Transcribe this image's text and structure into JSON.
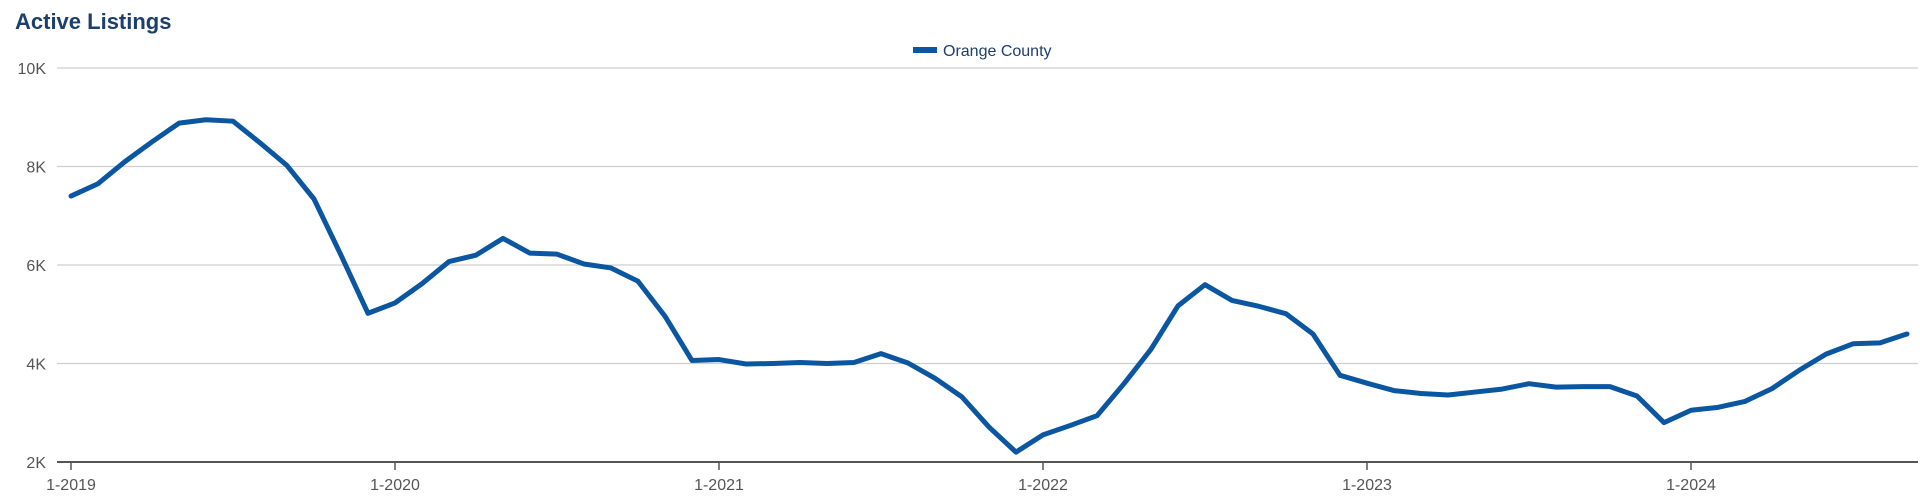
{
  "title": "Active Listings",
  "colors": {
    "series": "#0b56a1",
    "grid": "#cfcfcf",
    "axis": "#555555",
    "title": "#1c3f6e"
  },
  "chart_data": {
    "type": "line",
    "title": "Active Listings",
    "legend": {
      "placement": "top-center"
    },
    "grid": true,
    "ylim": [
      2000,
      10000
    ],
    "y_ticks": [
      {
        "value": 2000,
        "label": "2K"
      },
      {
        "value": 4000,
        "label": "4K"
      },
      {
        "value": 6000,
        "label": "6K"
      },
      {
        "value": 8000,
        "label": "8K"
      },
      {
        "value": 10000,
        "label": "10K"
      }
    ],
    "x_ticks": [
      "1-2019",
      "1-2020",
      "1-2021",
      "1-2022",
      "1-2023",
      "1-2024"
    ],
    "x": [
      "1-2019",
      "2-2019",
      "3-2019",
      "4-2019",
      "5-2019",
      "6-2019",
      "7-2019",
      "8-2019",
      "9-2019",
      "10-2019",
      "11-2019",
      "12-2019",
      "1-2020",
      "2-2020",
      "3-2020",
      "4-2020",
      "5-2020",
      "6-2020",
      "7-2020",
      "8-2020",
      "9-2020",
      "10-2020",
      "11-2020",
      "12-2020",
      "1-2021",
      "2-2021",
      "3-2021",
      "4-2021",
      "5-2021",
      "6-2021",
      "7-2021",
      "8-2021",
      "9-2021",
      "10-2021",
      "11-2021",
      "12-2021",
      "1-2022",
      "2-2022",
      "3-2022",
      "4-2022",
      "5-2022",
      "6-2022",
      "7-2022",
      "8-2022",
      "9-2022",
      "10-2022",
      "11-2022",
      "12-2022",
      "1-2023",
      "2-2023",
      "3-2023",
      "4-2023",
      "5-2023",
      "6-2023",
      "7-2023",
      "8-2023",
      "9-2023",
      "10-2023",
      "11-2023",
      "12-2023",
      "1-2024",
      "2-2024",
      "3-2024",
      "4-2024",
      "5-2024",
      "6-2024",
      "7-2024",
      "8-2024",
      "9-2024"
    ],
    "series": [
      {
        "name": "Orange County",
        "values": [
          7400,
          7650,
          8100,
          8500,
          8880,
          8950,
          8920,
          8480,
          8020,
          7340,
          6200,
          5020,
          5230,
          5620,
          6070,
          6200,
          6540,
          6240,
          6220,
          6020,
          5940,
          5670,
          4960,
          4060,
          4080,
          3990,
          4000,
          4020,
          4000,
          4020,
          4200,
          4010,
          3700,
          3320,
          2710,
          2200,
          2550,
          2740,
          2940,
          3590,
          4290,
          5170,
          5600,
          5280,
          5160,
          5010,
          4600,
          3760,
          3600,
          3450,
          3390,
          3360,
          3420,
          3480,
          3590,
          3520,
          3530,
          3530,
          3340,
          2800,
          3050,
          3110,
          3230,
          3490,
          3860,
          4190,
          4400,
          4420,
          4600
        ]
      }
    ]
  }
}
